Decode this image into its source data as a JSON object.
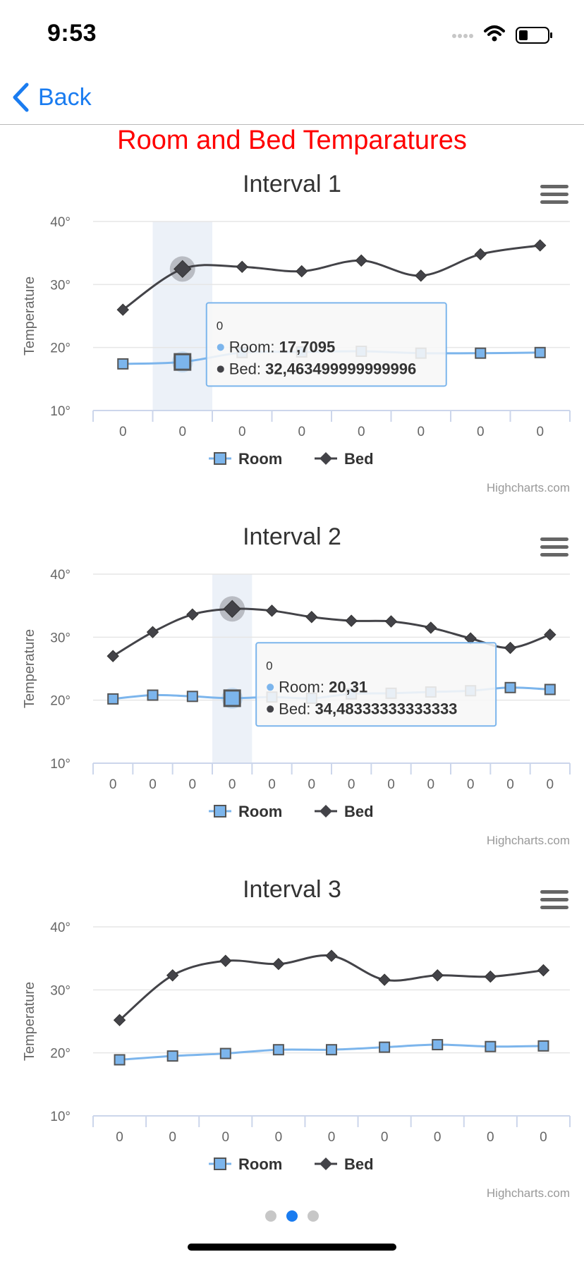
{
  "status": {
    "time": "9:53"
  },
  "nav": {
    "back_label": "Back"
  },
  "page_title": "Room and Bed Temparatures",
  "colors": {
    "room": "#7cb5ec",
    "bed": "#434348",
    "title": "#ff0000",
    "accent": "#1a7cf0"
  },
  "chart_data": [
    {
      "type": "line",
      "title": "Interval 1",
      "ylabel": "Temperature",
      "ylim": [
        10,
        40
      ],
      "yticks": [
        "10°",
        "20°",
        "30°",
        "40°"
      ],
      "categories": [
        "0",
        "0",
        "0",
        "0",
        "0",
        "0",
        "0",
        "0"
      ],
      "series": [
        {
          "name": "Room",
          "values": [
            17.4,
            17.7095,
            19.2,
            19.3,
            19.4,
            19.1,
            19.1,
            19.2
          ]
        },
        {
          "name": "Bed",
          "values": [
            26.0,
            32.463499999999996,
            32.8,
            32.1,
            33.8,
            31.4,
            34.8,
            36.2
          ]
        }
      ],
      "highlight_index": 1,
      "tooltip": {
        "header": "0",
        "room_label": "Room: ",
        "room_value": "17,7095",
        "bed_label": "Bed: ",
        "bed_value": "32,463499999999996"
      },
      "credits": "Highcharts.com"
    },
    {
      "type": "line",
      "title": "Interval 2",
      "ylabel": "Temperature",
      "ylim": [
        10,
        40
      ],
      "yticks": [
        "10°",
        "20°",
        "30°",
        "40°"
      ],
      "categories": [
        "0",
        "0",
        "0",
        "0",
        "0",
        "0",
        "0",
        "0",
        "0",
        "0",
        "0",
        "0"
      ],
      "series": [
        {
          "name": "Room",
          "values": [
            20.2,
            20.8,
            20.6,
            20.31,
            20.5,
            20.3,
            21.0,
            21.1,
            21.3,
            21.5,
            22.0,
            21.7
          ]
        },
        {
          "name": "Bed",
          "values": [
            27.0,
            30.8,
            33.6,
            34.483333333333334,
            34.2,
            33.2,
            32.6,
            32.5,
            31.5,
            29.8,
            28.3,
            30.4
          ]
        }
      ],
      "highlight_index": 3,
      "tooltip": {
        "header": "0",
        "room_label": "Room: ",
        "room_value": "20,31",
        "bed_label": "Bed: ",
        "bed_value": "34,48333333333333"
      },
      "credits": "Highcharts.com"
    },
    {
      "type": "line",
      "title": "Interval 3",
      "ylabel": "Temperature",
      "ylim": [
        10,
        40
      ],
      "yticks": [
        "10°",
        "20°",
        "30°",
        "40°"
      ],
      "categories": [
        "0",
        "0",
        "0",
        "0",
        "0",
        "0",
        "0",
        "0",
        "0"
      ],
      "series": [
        {
          "name": "Room",
          "values": [
            18.9,
            19.5,
            19.9,
            20.5,
            20.5,
            20.9,
            21.3,
            21.0,
            21.1
          ]
        },
        {
          "name": "Bed",
          "values": [
            25.2,
            32.3,
            34.6,
            34.1,
            35.4,
            31.6,
            32.3,
            32.1,
            33.1
          ]
        }
      ],
      "highlight_index": null,
      "tooltip": null,
      "credits": "Highcharts.com"
    }
  ],
  "pager": {
    "count": 3,
    "active": 1
  }
}
